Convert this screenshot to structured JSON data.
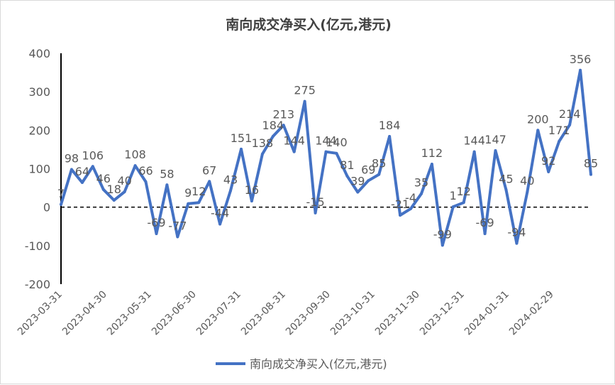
{
  "chart_data": {
    "type": "line",
    "title": "南向成交净买入(亿元,港元)",
    "series": [
      {
        "name": "南向成交净买入(亿元,港元)",
        "color": "#4472C4",
        "values": [
          7,
          98,
          64,
          106,
          46,
          18,
          40,
          108,
          66,
          -69,
          58,
          -77,
          9,
          12,
          67,
          -44,
          43,
          151,
          16,
          138,
          184,
          213,
          144,
          275,
          -15,
          144,
          140,
          81,
          39,
          69,
          85,
          184,
          -21,
          -4,
          35,
          112,
          -99,
          1,
          12,
          144,
          -69,
          147,
          45,
          -94,
          40,
          200,
          92,
          171,
          214,
          356,
          85
        ],
        "labels": [
          "7",
          "98",
          "64",
          "106",
          "46",
          "18",
          "40",
          "108",
          "66",
          "-69",
          "58",
          "-77",
          "9",
          "12",
          "67",
          "-44",
          "43",
          "151",
          "16",
          "138",
          "184",
          "213",
          "144",
          "275",
          "-15",
          "144",
          "140",
          "81",
          "39",
          "69",
          "85",
          "184",
          "-21",
          "-4",
          "35",
          "112",
          "-99",
          "1",
          "12",
          "144",
          "-69",
          "147",
          "45",
          "-94",
          "40",
          "200",
          "92",
          "171",
          "214",
          "356",
          "85"
        ]
      }
    ],
    "x_tick_labels": [
      "2023-03-31",
      "2023-04-30",
      "2023-05-31",
      "2023-06-30",
      "2023-07-31",
      "2023-08-31",
      "2023-09-30",
      "2023-10-31",
      "2023-11-30",
      "2023-12-31",
      "2024-01-31",
      "2024-02-29"
    ],
    "y_tick_labels": [
      "400",
      "300",
      "200",
      "100",
      "0",
      "-100",
      "-200"
    ],
    "ylim": [
      -200,
      400
    ],
    "y_ticks": [
      400,
      300,
      200,
      100,
      0,
      -100,
      -200
    ],
    "zero_line": "dashed",
    "grid": false,
    "legend_position": "bottom"
  }
}
